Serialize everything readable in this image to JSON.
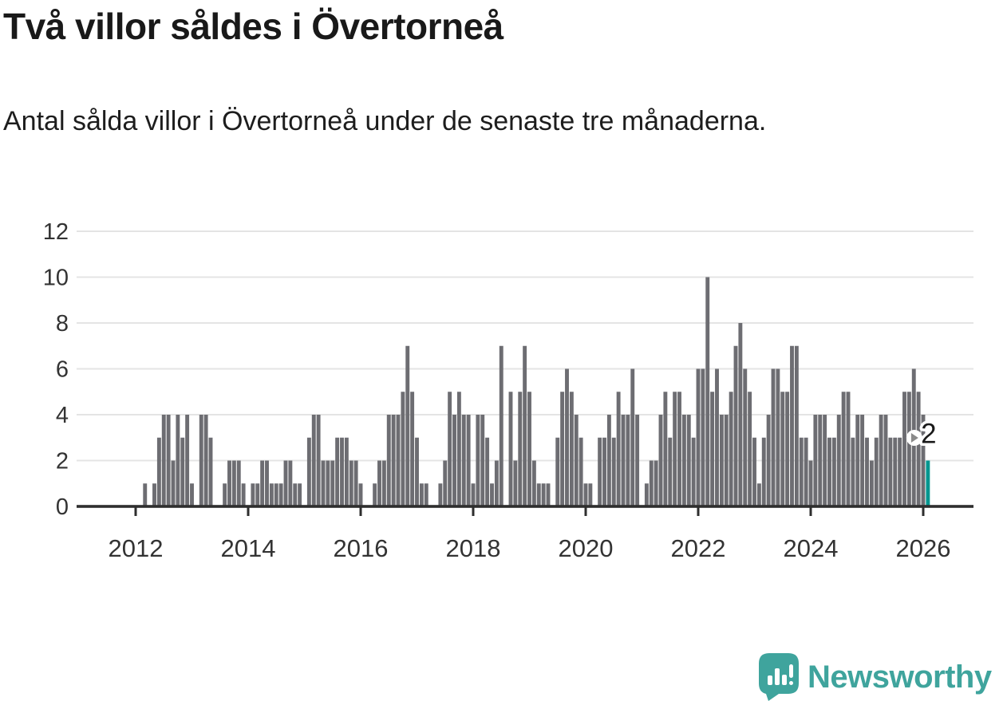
{
  "header": {
    "title": "Två villor såldes i Övertorneå",
    "subtitle": "Antal sålda villor i Övertorneå under de senaste tre månaderna."
  },
  "annotation": {
    "label": "2",
    "pointer_icon": "chevron-right-icon"
  },
  "logo": {
    "text": "Newsworthy",
    "icon": "newsworthy-speech-bubble-bar-chart-icon"
  },
  "colors": {
    "bar": "#6d6d72",
    "highlight": "#00968f",
    "logo_teal": "#3fa49d",
    "grid": "#e4e4e4",
    "axis": "#2e2e2e",
    "text": "#1a1a1a",
    "tick_text": "#333333",
    "annotation_arrow": "#8a8a8a"
  },
  "chart_data": {
    "type": "bar",
    "title": "Två villor såldes i Övertorneå",
    "subtitle": "Antal sålda villor i Övertorneå under de senaste tre månaderna.",
    "xlabel": "",
    "ylabel": "",
    "ylim": [
      0,
      12
    ],
    "yticks": [
      0,
      2,
      4,
      6,
      8,
      10,
      12
    ],
    "xticks": [
      2012,
      2014,
      2016,
      2018,
      2020,
      2022,
      2024,
      2026
    ],
    "grid": "horizontal",
    "legend": "none",
    "start_month": "2012-01",
    "end_month": "2026-02",
    "highlight_last_value": 2,
    "years": [
      "2012",
      "2013",
      "2014",
      "2015",
      "2016",
      "2017",
      "2018",
      "2019",
      "2020",
      "2021",
      "2022",
      "2023",
      "2024",
      "2025",
      "2026"
    ],
    "values_by_year": {
      "2012": [
        0,
        0,
        1,
        0,
        1,
        3,
        4,
        4,
        2,
        4,
        3,
        4
      ],
      "2013": [
        1,
        0,
        4,
        4,
        3,
        0,
        0,
        1,
        2,
        2,
        2,
        1
      ],
      "2014": [
        0,
        1,
        1,
        2,
        2,
        1,
        1,
        1,
        2,
        2,
        1,
        1
      ],
      "2015": [
        0,
        3,
        4,
        4,
        2,
        2,
        2,
        3,
        3,
        3,
        2,
        2
      ],
      "2016": [
        1,
        0,
        0,
        1,
        2,
        2,
        4,
        4,
        4,
        5,
        7,
        5
      ],
      "2017": [
        3,
        1,
        1,
        0,
        0,
        1,
        2,
        5,
        4,
        5,
        4,
        4
      ],
      "2018": [
        1,
        4,
        4,
        3,
        1,
        2,
        7,
        0,
        5,
        2,
        5,
        7
      ],
      "2019": [
        5,
        2,
        1,
        1,
        1,
        0,
        3,
        5,
        6,
        5,
        4,
        3
      ],
      "2020": [
        1,
        1,
        0,
        3,
        3,
        4,
        3,
        5,
        4,
        4,
        6,
        4
      ],
      "2021": [
        0,
        1,
        2,
        2,
        4,
        5,
        3,
        5,
        5,
        4,
        4,
        3
      ],
      "2022": [
        6,
        6,
        10,
        5,
        6,
        4,
        4,
        5,
        7,
        8,
        6,
        5
      ],
      "2023": [
        3,
        1,
        3,
        4,
        6,
        6,
        5,
        5,
        7,
        7,
        3,
        3
      ],
      "2024": [
        2,
        4,
        4,
        4,
        3,
        3,
        4,
        5,
        5,
        3,
        4,
        4
      ],
      "2025": [
        3,
        2,
        3,
        4,
        4,
        3,
        3,
        3,
        5,
        5,
        6,
        5
      ],
      "2026": [
        4,
        2
      ]
    }
  }
}
